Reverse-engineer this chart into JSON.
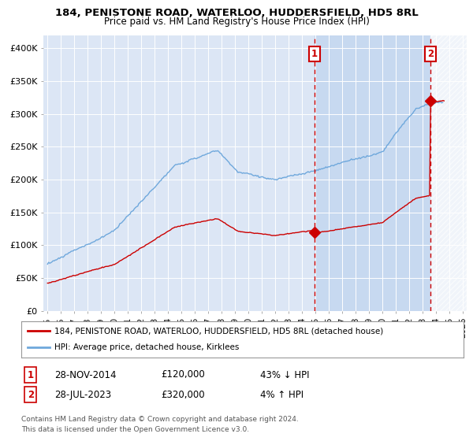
{
  "title_line1": "184, PENISTONE ROAD, WATERLOO, HUDDERSFIELD, HD5 8RL",
  "title_line2": "Price paid vs. HM Land Registry's House Price Index (HPI)",
  "ylabel_ticks": [
    "£0",
    "£50K",
    "£100K",
    "£150K",
    "£200K",
    "£250K",
    "£300K",
    "£350K",
    "£400K"
  ],
  "ytick_values": [
    0,
    50000,
    100000,
    150000,
    200000,
    250000,
    300000,
    350000,
    400000
  ],
  "ylim": [
    0,
    420000
  ],
  "xlim_start": 1994.7,
  "xlim_end": 2026.3,
  "xticks": [
    1995,
    1996,
    1997,
    1998,
    1999,
    2000,
    2001,
    2002,
    2003,
    2004,
    2005,
    2006,
    2007,
    2008,
    2009,
    2010,
    2011,
    2012,
    2013,
    2014,
    2015,
    2016,
    2017,
    2018,
    2019,
    2020,
    2021,
    2022,
    2023,
    2024,
    2025,
    2026
  ],
  "hpi_color": "#6fa8dc",
  "sale_color": "#cc0000",
  "sale1_x": 2014.91,
  "sale1_y": 120000,
  "sale2_x": 2023.57,
  "sale2_y": 320000,
  "vline_color": "#cc0000",
  "annotation_box_color": "#cc0000",
  "legend_label1": "184, PENISTONE ROAD, WATERLOO, HUDDERSFIELD, HD5 8RL (detached house)",
  "legend_label2": "HPI: Average price, detached house, Kirklees",
  "footnote1": "Contains HM Land Registry data © Crown copyright and database right 2024.",
  "footnote2": "This data is licensed under the Open Government Licence v3.0.",
  "table_row1_num": "1",
  "table_row1_date": "28-NOV-2014",
  "table_row1_price": "£120,000",
  "table_row1_hpi": "43% ↓ HPI",
  "table_row2_num": "2",
  "table_row2_date": "28-JUL-2023",
  "table_row2_price": "£320,000",
  "table_row2_hpi": "4% ↑ HPI",
  "background_color": "#ffffff",
  "plot_bg_color": "#dce6f5",
  "shade_color": "#c5d8f0",
  "hatch_color": "#bbbbbb"
}
